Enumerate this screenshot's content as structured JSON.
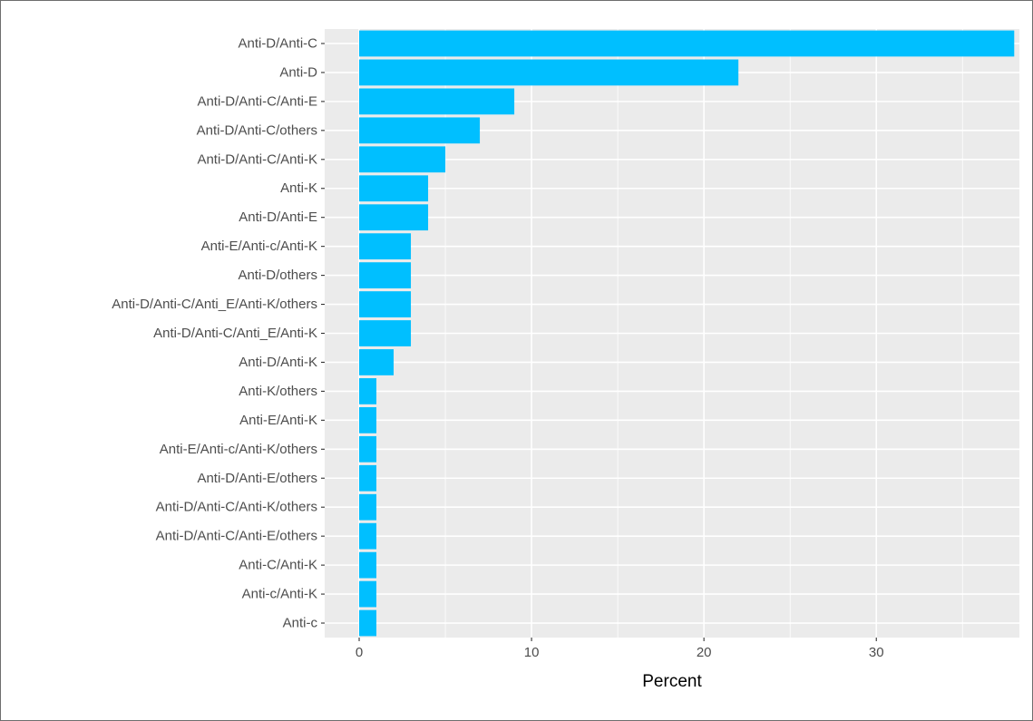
{
  "chart_data": {
    "type": "bar",
    "orientation": "horizontal",
    "categories": [
      "Anti-D/Anti-C",
      "Anti-D",
      "Anti-D/Anti-C/Anti-E",
      "Anti-D/Anti-C/others",
      "Anti-D/Anti-C/Anti-K",
      "Anti-K",
      "Anti-D/Anti-E",
      "Anti-E/Anti-c/Anti-K",
      "Anti-D/others",
      "Anti-D/Anti-C/Anti_E/Anti-K/others",
      "Anti-D/Anti-C/Anti_E/Anti-K",
      "Anti-D/Anti-K",
      "Anti-K/others",
      "Anti-E/Anti-K",
      "Anti-E/Anti-c/Anti-K/others",
      "Anti-D/Anti-E/others",
      "Anti-D/Anti-C/Anti-K/others",
      "Anti-D/Anti-C/Anti-E/others",
      "Anti-C/Anti-K",
      "Anti-c/Anti-K",
      "Anti-c"
    ],
    "values": [
      38,
      22,
      9,
      7,
      5,
      4,
      4,
      3,
      3,
      3,
      3,
      2,
      1,
      1,
      1,
      1,
      1,
      1,
      1,
      1,
      1
    ],
    "xlabel": "Percent",
    "ylabel": "",
    "xlim": [
      -2,
      38.3
    ],
    "xticks": [
      0,
      10,
      20,
      30
    ],
    "bar_color": "#00BFFF",
    "panel_color": "#EBEBEB",
    "grid": true
  }
}
